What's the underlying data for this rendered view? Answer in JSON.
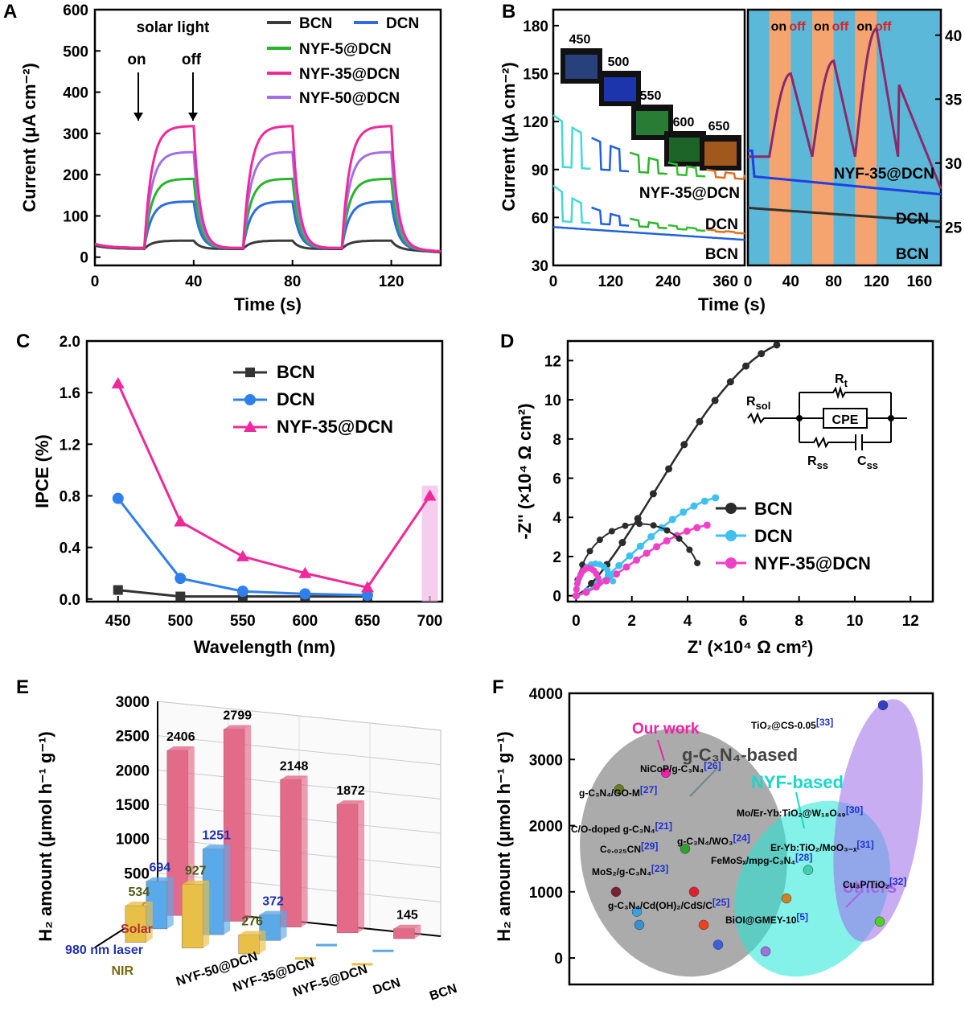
{
  "chart_data": [
    {
      "panel": "A",
      "type": "line",
      "xlabel": "Time (s)",
      "ylabel": "Current (μA cm⁻²)",
      "xlim": [
        0,
        140
      ],
      "ylim": [
        -20,
        600
      ],
      "xticks": [
        "0",
        "40",
        "80",
        "120"
      ],
      "yticks": [
        "0",
        "100",
        "200",
        "300",
        "400",
        "500",
        "600"
      ],
      "annotations": {
        "title": "solar light",
        "on": "on",
        "off": "off"
      },
      "legend": [
        {
          "name": "BCN",
          "color": "#3c3c3c"
        },
        {
          "name": "DCN",
          "color": "#2f6be5"
        },
        {
          "name": "NYF-5@DCN",
          "color": "#27b52b"
        },
        {
          "name": "NYF-35@DCN",
          "color": "#f0289a"
        },
        {
          "name": "NYF-50@DCN",
          "color": "#a070e8"
        }
      ],
      "series": [
        {
          "name": "BCN",
          "dark": 20,
          "light": 40
        },
        {
          "name": "DCN",
          "dark": 22,
          "light": 135
        },
        {
          "name": "NYF-5@DCN",
          "dark": 22,
          "light": 190
        },
        {
          "name": "NYF-35@DCN",
          "dark": 22,
          "light": 318
        },
        {
          "name": "NYF-50@DCN",
          "dark": 22,
          "light": 255
        }
      ],
      "on_intervals": [
        [
          20,
          40
        ],
        [
          60,
          80
        ],
        [
          100,
          120
        ]
      ]
    },
    {
      "panel": "B",
      "type": "line",
      "xlabel": "Time (s)",
      "ylabel": "Current (μA cm⁻²)",
      "left": {
        "xlim": [
          0,
          400
        ],
        "ylim": [
          30,
          190
        ],
        "xticks": [
          "0",
          "120",
          "240",
          "360"
        ],
        "yticks": [
          "30",
          "60",
          "90",
          "120",
          "150",
          "180"
        ],
        "wavelengths": [
          "450",
          "500",
          "550",
          "600",
          "650"
        ],
        "series_labels": [
          "NYF-35@DCN",
          "DCN",
          "BCN"
        ]
      },
      "right": {
        "xlim": [
          0,
          180
        ],
        "ylim": [
          22,
          42
        ],
        "xticks": [
          "0",
          "40",
          "80",
          "120",
          "160"
        ],
        "yticks": [
          "25",
          "30",
          "35",
          "40"
        ],
        "on_label": "on",
        "off_label": "off",
        "series_labels": [
          "NYF-35@DCN",
          "DCN",
          "BCN"
        ],
        "nyf_peaks": [
          37,
          38,
          40.5
        ]
      }
    },
    {
      "panel": "C",
      "type": "line",
      "xlabel": "Wavelength (nm)",
      "ylabel": "IPCE (%)",
      "xlim": [
        425,
        710
      ],
      "ylim": [
        -0.02,
        2.0
      ],
      "xticks": [
        "450",
        "500",
        "550",
        "600",
        "650",
        "700"
      ],
      "yticks": [
        "0.0",
        "0.4",
        "0.8",
        "1.2",
        "1.6",
        "2.0"
      ],
      "x": [
        450,
        500,
        550,
        600,
        650,
        700
      ],
      "series": [
        {
          "name": "BCN",
          "color": "#333333",
          "marker": "square",
          "values": [
            0.07,
            0.02,
            0.02,
            0.02,
            0.02,
            null
          ]
        },
        {
          "name": "DCN",
          "color": "#2f80ed",
          "marker": "circle",
          "values": [
            0.78,
            0.16,
            0.06,
            0.04,
            0.03,
            null
          ]
        },
        {
          "name": "NYF-35@DCN",
          "color": "#f0289a",
          "marker": "triangle",
          "values": [
            1.67,
            0.6,
            0.33,
            0.2,
            0.09,
            0.8
          ]
        }
      ]
    },
    {
      "panel": "D",
      "type": "scatter",
      "xlabel": "Z' (×10⁴ Ω cm²)",
      "ylabel": "-Z'' (×10⁴ Ω cm²)",
      "xlim": [
        -0.3,
        12.8
      ],
      "ylim": [
        -0.3,
        13
      ],
      "xticks": [
        "0",
        "2",
        "4",
        "6",
        "8",
        "10",
        "12"
      ],
      "yticks": [
        "0",
        "2",
        "4",
        "6",
        "8",
        "10",
        "12"
      ],
      "circuit": {
        "rsol": "R",
        "rsol_sub": "sol",
        "rt": "R",
        "rt_sub": "t",
        "cpe": "CPE",
        "rss": "R",
        "rss_sub": "ss",
        "css": "C",
        "css_sub": "ss"
      },
      "series": [
        {
          "name": "BCN",
          "color": "#2b2b2b",
          "end": [
            7.2,
            12.8
          ],
          "inset_end": [
            4.6,
            1.5
          ]
        },
        {
          "name": "DCN",
          "color": "#3ec0f0",
          "end": [
            5.0,
            5.0
          ],
          "inset_end": [
            1.4,
            0.2
          ]
        },
        {
          "name": "NYF-35@DCN",
          "color": "#f040c8",
          "end": [
            4.7,
            3.6
          ],
          "inset_end": [
            0.9,
            0.1
          ]
        }
      ]
    },
    {
      "panel": "E",
      "type": "bar",
      "ylabel": "H₂ amount (μmol h⁻¹ g⁻¹)",
      "zlim": [
        0,
        3000
      ],
      "zticks": [
        "0",
        "500",
        "1000",
        "1500",
        "2000",
        "2500",
        "3000"
      ],
      "samples": [
        "NYF-50@DCN",
        "NYF-35@DCN",
        "NYF-5@DCN",
        "DCN",
        "BCN"
      ],
      "conditions": [
        "Solar",
        "980 nm laser",
        "NIR"
      ],
      "values": {
        "Solar": [
          2406,
          2799,
          2148,
          1872,
          145
        ],
        "980 nm laser": [
          694,
          1251,
          372,
          0,
          0
        ],
        "NIR": [
          534,
          927,
          276,
          0,
          0
        ]
      },
      "labels": {
        "Solar": [
          "2406",
          "2799",
          "2148",
          "1872",
          "145"
        ],
        "980 nm laser": [
          "694",
          "1251",
          "372"
        ],
        "NIR": [
          "534",
          "927",
          "276"
        ]
      },
      "colors": {
        "Solar": "#e46a8a",
        "980 nm laser": "#5aa9e8",
        "NIR": "#e8c048"
      }
    },
    {
      "panel": "F",
      "type": "scatter",
      "ylabel": "H₂ amount (μmol h⁻¹ g⁻¹)",
      "ylim": [
        -400,
        4000
      ],
      "yticks": [
        "0",
        "1000",
        "2000",
        "3000",
        "4000"
      ],
      "groups": [
        {
          "name": "g-C₃N₄-based",
          "color": "#777777"
        },
        {
          "name": "NYF-based",
          "color": "#18d9c8"
        },
        {
          "name": "others",
          "color": "#a16ae0"
        }
      ],
      "our_work": "Our work",
      "points": [
        {
          "name": "g-C₃N₄/GO-M",
          "ref": "[27]",
          "value": 2550
        },
        {
          "name": "Our work",
          "ref": "",
          "value": 2799
        },
        {
          "name": "NiCoP/g-C₃N₄",
          "ref": "[26]",
          "value": 1650
        },
        {
          "name": "C/O-doped g-C₃N₄",
          "ref": "[21]",
          "value": 1000
        },
        {
          "name": "C₀.₀₂₅CN",
          "ref": "[29]",
          "value": 700
        },
        {
          "name": "g-C₃N₄/WO₃",
          "ref": "[24]",
          "value": 1000
        },
        {
          "name": "MoS₂/g-C₃N₄",
          "ref": "[23]",
          "value": 500
        },
        {
          "name": "FeMoSₓ/mpg-C₃N₄",
          "ref": "[28]",
          "value": 500
        },
        {
          "name": "g-C₃N₄/Cd(OH)₂/CdS/C",
          "ref": "[25]",
          "value": 200
        },
        {
          "name": "BiOI@GMEY-10",
          "ref": "[5]",
          "value": 100
        },
        {
          "name": "Mo/Er-Yb:TiO₂@W₁₈O₄₉",
          "ref": "[30]",
          "value": 900
        },
        {
          "name": "Er-Yb:TiO₂/MoO₃₋ₓ",
          "ref": "[31]",
          "value": 1330
        },
        {
          "name": "Cu₃P/TiO₂",
          "ref": "[32]",
          "value": 550
        },
        {
          "name": "TiO₂@CS-0.05",
          "ref": "[33]",
          "value": 3820
        }
      ]
    }
  ],
  "labels": {
    "panel_a": "A",
    "panel_b": "B",
    "panel_c": "C",
    "panel_d": "D",
    "panel_e": "E",
    "panel_f": "F"
  }
}
